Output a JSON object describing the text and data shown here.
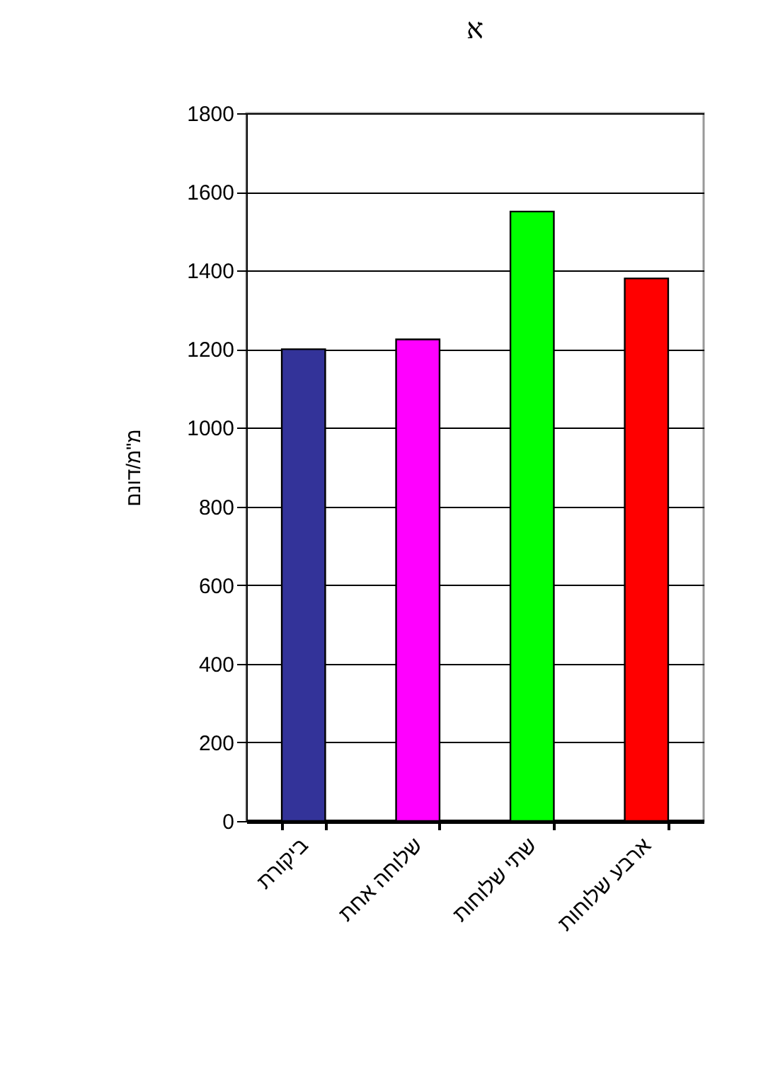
{
  "chart_data": {
    "type": "bar",
    "title": "א",
    "ylabel": "מ\"מ/דונם",
    "categories": [
      "ביקורת",
      "שלוחה אחת",
      "שתי שלוחות",
      "ארבע שלוחות"
    ],
    "values": [
      1200,
      1225,
      1550,
      1380
    ],
    "colors": [
      "#333399",
      "#ff00ff",
      "#00ff00",
      "#ff0000"
    ],
    "ylim": [
      0,
      1800
    ],
    "yticks": [
      0,
      200,
      400,
      600,
      800,
      1000,
      1200,
      1400,
      1600,
      1800
    ],
    "grid": "y"
  }
}
